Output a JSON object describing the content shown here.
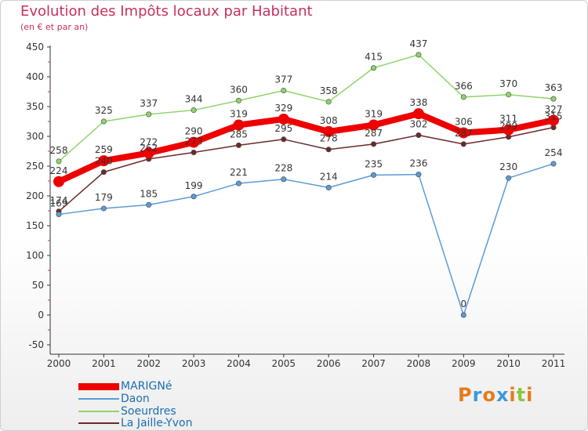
{
  "header": {
    "title": "Evolution des Impôts locaux par Habitant",
    "subtitle": "(en € et par an)"
  },
  "chart_data": {
    "type": "line",
    "title": "Evolution des Impôts locaux par Habitant",
    "subtitle": "(en € et par an)",
    "xlabel": "",
    "ylabel": "",
    "ylim": [
      -50,
      450
    ],
    "yticks": [
      -50,
      0,
      50,
      100,
      150,
      200,
      250,
      300,
      350,
      400,
      450
    ],
    "grid": false,
    "legend_position": "bottom-left",
    "x": [
      "2000",
      "2001",
      "2002",
      "2003",
      "2004",
      "2005",
      "2006",
      "2007",
      "2008",
      "2009",
      "2010",
      "2011"
    ],
    "series": [
      {
        "name": "MARIGNé",
        "color": "#ee0000",
        "values": [
          224,
          259,
          272,
          290,
          319,
          329,
          308,
          319,
          338,
          306,
          311,
          327
        ]
      },
      {
        "name": "Daon",
        "color": "#5b9bd5",
        "values": [
          169,
          179,
          185,
          199,
          221,
          228,
          214,
          235,
          236,
          0,
          230,
          254
        ]
      },
      {
        "name": "Soeurdres",
        "color": "#8fd46a",
        "values": [
          258,
          325,
          337,
          344,
          360,
          377,
          358,
          415,
          437,
          366,
          370,
          363
        ]
      },
      {
        "name": "La Jaille-Yvon",
        "color": "#6b2a2a",
        "values": [
          174,
          240,
          262,
          273,
          285,
          295,
          278,
          287,
          302,
          287,
          299,
          315
        ]
      }
    ]
  },
  "branding": {
    "letters": [
      "P",
      "r",
      "o",
      "x",
      "i",
      "t",
      "i"
    ],
    "colors": [
      "#e87a1a",
      "#3a9ad9",
      "#e87a1a",
      "#3a9ad9",
      "#e87a1a",
      "#8cc63f",
      "#e87a1a"
    ]
  }
}
